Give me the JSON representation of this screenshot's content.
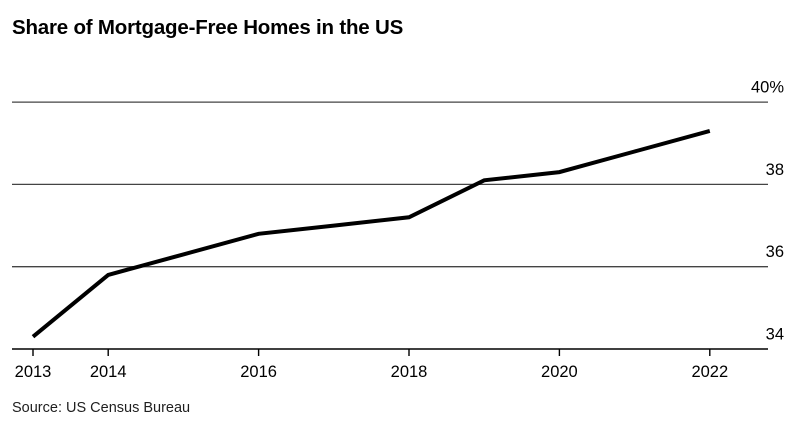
{
  "header": {
    "title": "Share of Mortgage-Free Homes in the US"
  },
  "source": {
    "label": "Source: US Census Bureau"
  },
  "chart_data": {
    "type": "line",
    "title": "Share of Mortgage-Free Homes in the US",
    "x": [
      2013,
      2014,
      2015,
      2016,
      2017,
      2018,
      2019,
      2020,
      2021,
      2022
    ],
    "series": [
      {
        "name": "Share of mortgage-free homes",
        "values": [
          34.3,
          35.8,
          36.3,
          36.8,
          37.0,
          37.2,
          38.1,
          38.3,
          38.8,
          39.3
        ]
      }
    ],
    "xlabel": "",
    "ylabel": "",
    "ylim": [
      34,
      40
    ],
    "yticks": {
      "values": [
        34,
        36,
        38,
        40
      ],
      "labels": [
        "34",
        "36",
        "38",
        "40%"
      ]
    },
    "xticks": {
      "values": [
        2013,
        2014,
        2016,
        2018,
        2020,
        2022
      ],
      "labels": [
        "2013",
        "2014",
        "2016",
        "2018",
        "2020",
        "2022"
      ]
    },
    "grid": "horizontal",
    "legend": "none",
    "y_axis_side": "right",
    "colors": {
      "line": "#000000",
      "gridline": "#444444",
      "axis": "#000000",
      "tick": "#000000",
      "label": "#000000",
      "background": "#ffffff"
    }
  }
}
